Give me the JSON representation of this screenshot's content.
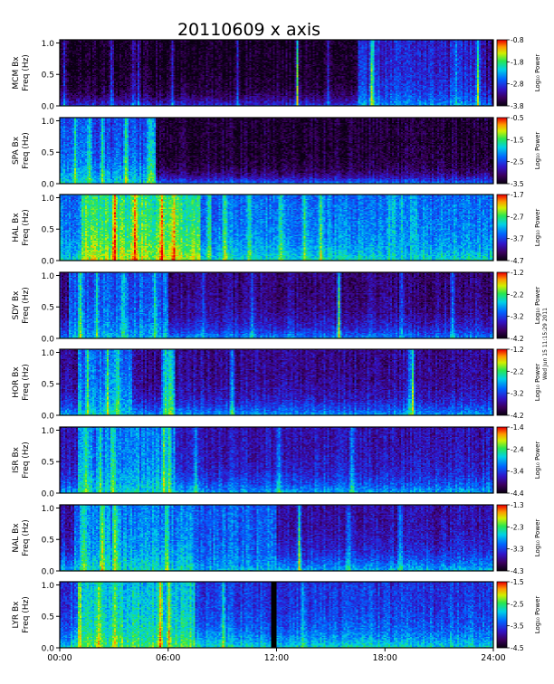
{
  "chart_data": {
    "type": "heatmap",
    "title": "20110609  x axis",
    "x_tick_labels": [
      "00:00",
      "06:00",
      "12:00",
      "18:00",
      "24:00"
    ],
    "x_range_hours": [
      0,
      24
    ],
    "colorbar_label": "Log₁₀ Power",
    "side_note": "Wed Jun 15 11:15:29 2011",
    "panels": [
      {
        "station": "MCM Bx",
        "ylabel": "Freq (Hz)",
        "yticks": [
          "0.0",
          "0.5",
          "1.0"
        ],
        "ylim": [
          0,
          1.05
        ],
        "colorbar_ticks": [
          "-0.8",
          "-1.8",
          "-2.8",
          "-3.8"
        ],
        "colorbar_range": [
          -3.8,
          -0.8
        ],
        "background_level": 0.02,
        "low_band_level": 0.3,
        "low_band_height_hz": 0.15,
        "spikes_hours": [
          0.2,
          2.8,
          4.05,
          4.35,
          6.2,
          9.8,
          13.2,
          14.9,
          17.25,
          17.35,
          22.0,
          23.15,
          23.8
        ],
        "bright_spikes_hours": [
          13.2,
          17.3,
          23.15
        ],
        "enhanced_intervals": [
          {
            "start": 16.5,
            "end": 23.6,
            "level": 0.45,
            "height_hz": 0.22
          }
        ]
      },
      {
        "station": "SPA Bx",
        "ylabel": "Freq (Hz)",
        "yticks": [
          "0.0",
          "0.5",
          "1.0"
        ],
        "ylim": [
          0,
          1.05
        ],
        "colorbar_ticks": [
          "-0.5",
          "-1.5",
          "-2.5",
          "-3.5"
        ],
        "colorbar_range": [
          -3.5,
          -0.5
        ],
        "background_level": 0.05,
        "low_band_level": 0.42,
        "low_band_height_hz": 0.12,
        "spikes_hours": [
          0.8,
          1.6,
          2.3,
          3.6,
          4.9,
          5.1
        ],
        "bright_spikes_hours": [],
        "enhanced_intervals": [
          {
            "start": 0.0,
            "end": 5.3,
            "level": 0.55,
            "height_hz": 0.35
          }
        ]
      },
      {
        "station": "HAL Bx",
        "ylabel": "Freq (Hz)",
        "yticks": [
          "0.0",
          "0.5",
          "1.0"
        ],
        "ylim": [
          0,
          1.05
        ],
        "colorbar_ticks": [
          "-1.7",
          "-2.7",
          "-3.7",
          "-4.7"
        ],
        "colorbar_range": [
          -4.7,
          -1.7
        ],
        "background_level": 0.4,
        "low_band_level": 0.58,
        "low_band_height_hz": 0.3,
        "spikes_hours": [
          3.0,
          4.1,
          5.6,
          6.3,
          8.2,
          9.1,
          10.5,
          12.3,
          13.6,
          14.5
        ],
        "bright_spikes_hours": [],
        "enhanced_intervals": [
          {
            "start": 1.2,
            "end": 7.8,
            "level": 0.78,
            "height_hz": 0.45
          },
          {
            "start": 18.0,
            "end": 19.8,
            "level": 0.55,
            "height_hz": 0.25
          }
        ]
      },
      {
        "station": "SDY Bx",
        "ylabel": "Freq (Hz)",
        "yticks": [
          "0.0",
          "0.5",
          "1.0"
        ],
        "ylim": [
          0,
          1.05
        ],
        "colorbar_ticks": [
          "-1.2",
          "-2.2",
          "-3.2",
          "-4.2"
        ],
        "colorbar_range": [
          -4.2,
          -1.2
        ],
        "background_level": 0.15,
        "low_band_level": 0.45,
        "low_band_height_hz": 0.22,
        "spikes_hours": [
          1.1,
          2.0,
          3.5,
          5.2,
          7.9,
          10.6,
          15.45,
          19.0,
          21.8
        ],
        "bright_spikes_hours": [
          15.45
        ],
        "enhanced_intervals": [
          {
            "start": 0.5,
            "end": 6.0,
            "level": 0.52,
            "height_hz": 0.3
          }
        ]
      },
      {
        "station": "HOR Bx",
        "ylabel": "Freq (Hz)",
        "yticks": [
          "0.0",
          "0.5",
          "1.0"
        ],
        "ylim": [
          0,
          1.05
        ],
        "colorbar_ticks": [
          "-1.2",
          "-2.2",
          "-3.2",
          "-4.2"
        ],
        "colorbar_range": [
          -4.2,
          -1.2
        ],
        "background_level": 0.17,
        "low_band_level": 0.48,
        "low_band_height_hz": 0.2,
        "spikes_hours": [
          1.5,
          2.6,
          3.1,
          5.8,
          6.1,
          9.5,
          19.4,
          19.6
        ],
        "bright_spikes_hours": [
          19.6
        ],
        "enhanced_intervals": [
          {
            "start": 1.0,
            "end": 4.0,
            "level": 0.55,
            "height_hz": 0.4
          },
          {
            "start": 5.6,
            "end": 6.4,
            "level": 0.55,
            "height_hz": 0.4
          }
        ]
      },
      {
        "station": "ISR Bx",
        "ylabel": "Freq (Hz)",
        "yticks": [
          "0.0",
          "0.5",
          "1.0"
        ],
        "ylim": [
          0,
          1.05
        ],
        "colorbar_ticks": [
          "-1.4",
          "-2.4",
          "-3.4",
          "-4.4"
        ],
        "colorbar_range": [
          -4.4,
          -1.4
        ],
        "background_level": 0.22,
        "low_band_level": 0.5,
        "low_band_height_hz": 0.22,
        "spikes_hours": [
          1.4,
          2.2,
          2.9,
          5.7,
          6.0,
          7.5,
          12.2,
          16.2
        ],
        "bright_spikes_hours": [],
        "enhanced_intervals": [
          {
            "start": 1.0,
            "end": 6.4,
            "level": 0.55,
            "height_hz": 0.35
          }
        ]
      },
      {
        "station": "NAL Bx",
        "ylabel": "Freq (Hz)",
        "yticks": [
          "0.0",
          "0.5",
          "1.0"
        ],
        "ylim": [
          0,
          1.05
        ],
        "colorbar_ticks": [
          "-1.3",
          "-2.3",
          "-3.3",
          "-4.3"
        ],
        "colorbar_range": [
          -4.3,
          -1.3
        ],
        "background_level": 0.2,
        "low_band_level": 0.52,
        "low_band_height_hz": 0.25,
        "spikes_hours": [
          1.3,
          2.3,
          3.0,
          5.9,
          13.3,
          16.0,
          18.9
        ],
        "bright_spikes_hours": [
          13.3
        ],
        "enhanced_intervals": [
          {
            "start": 0.8,
            "end": 7.5,
            "level": 0.58,
            "height_hz": 0.4
          },
          {
            "start": 7.5,
            "end": 12.0,
            "level": 0.5,
            "height_hz": 0.2
          }
        ]
      },
      {
        "station": "LYR Bx",
        "ylabel": "Freq (Hz)",
        "yticks": [
          "0.0",
          "0.5",
          "1.0"
        ],
        "ylim": [
          0,
          1.05
        ],
        "colorbar_ticks": [
          "-1.5",
          "-2.5",
          "-3.5",
          "-4.5"
        ],
        "colorbar_range": [
          -4.5,
          -1.5
        ],
        "background_level": 0.3,
        "low_band_level": 0.58,
        "low_band_height_hz": 0.28,
        "spikes_hours": [
          1.0,
          2.1,
          3.0,
          5.5,
          6.0,
          9.0,
          13.5
        ],
        "bright_spikes_hours": [],
        "enhanced_intervals": [
          {
            "start": 1.0,
            "end": 7.5,
            "level": 0.68,
            "height_hz": 0.45
          }
        ],
        "data_gap_hours": [
          11.65,
          12.0
        ]
      }
    ]
  }
}
